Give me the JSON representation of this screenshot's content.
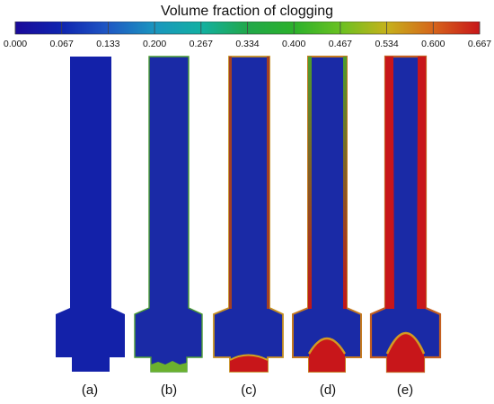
{
  "colorbar": {
    "title": "Volume fraction of clogging",
    "ticks": [
      "0.000",
      "0.067",
      "0.133",
      "0.200",
      "0.267",
      "0.334",
      "0.400",
      "0.467",
      "0.534",
      "0.600",
      "0.667"
    ],
    "colors": [
      "#1a0a9a",
      "#0f25b0",
      "#1f58c4",
      "#1a96bf",
      "#12b0a2",
      "#21a84a",
      "#2bb12b",
      "#6ac121",
      "#c6b21b",
      "#d6651b",
      "#c8161a"
    ]
  },
  "panels": [
    "(a)",
    "(b)",
    "(c)",
    "(d)",
    "(e)"
  ]
}
